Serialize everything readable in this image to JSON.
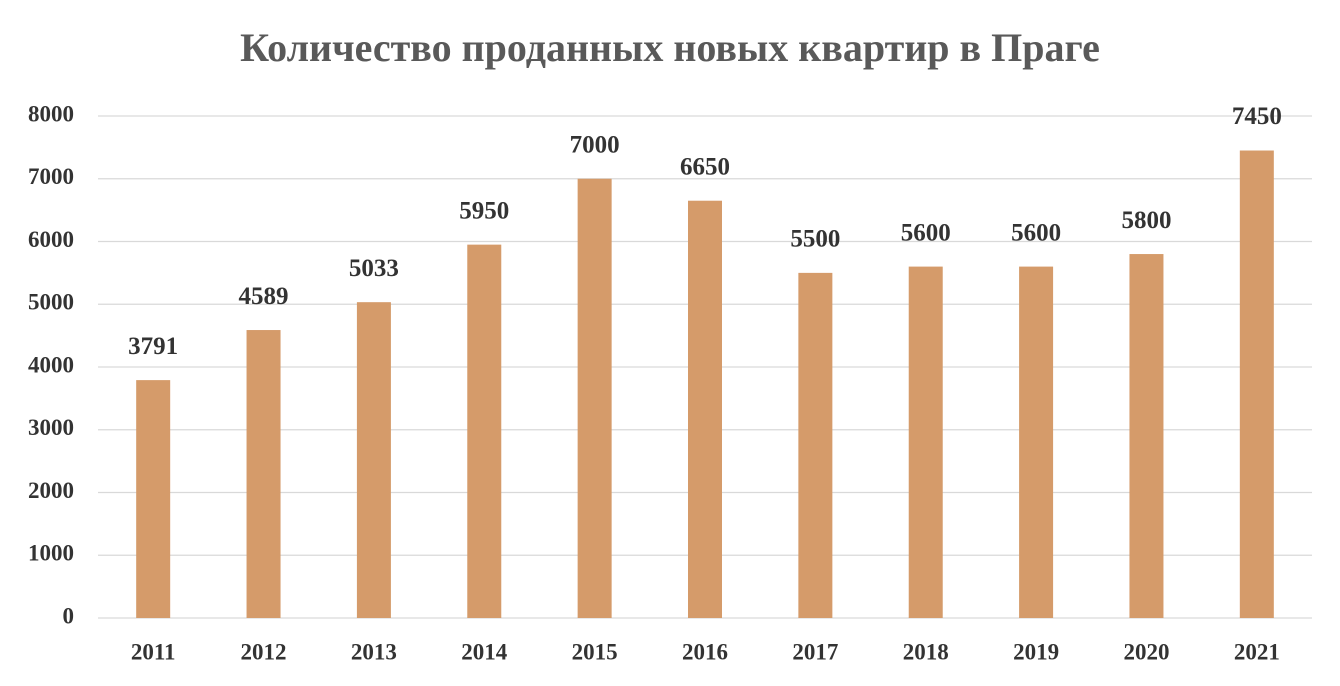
{
  "chart_data": {
    "type": "bar",
    "title": "Количество проданных новых квартир в Праге",
    "categories": [
      "2011",
      "2012",
      "2013",
      "2014",
      "2015",
      "2016",
      "2017",
      "2018",
      "2019",
      "2020",
      "2021"
    ],
    "values": [
      3791,
      4589,
      5033,
      5950,
      7000,
      6650,
      5500,
      5600,
      5600,
      5800,
      7450
    ],
    "color": "#d59b6a",
    "ylim": [
      0,
      8000
    ],
    "yticks": [
      0,
      1000,
      2000,
      3000,
      4000,
      5000,
      6000,
      7000,
      8000
    ],
    "grid": true
  }
}
